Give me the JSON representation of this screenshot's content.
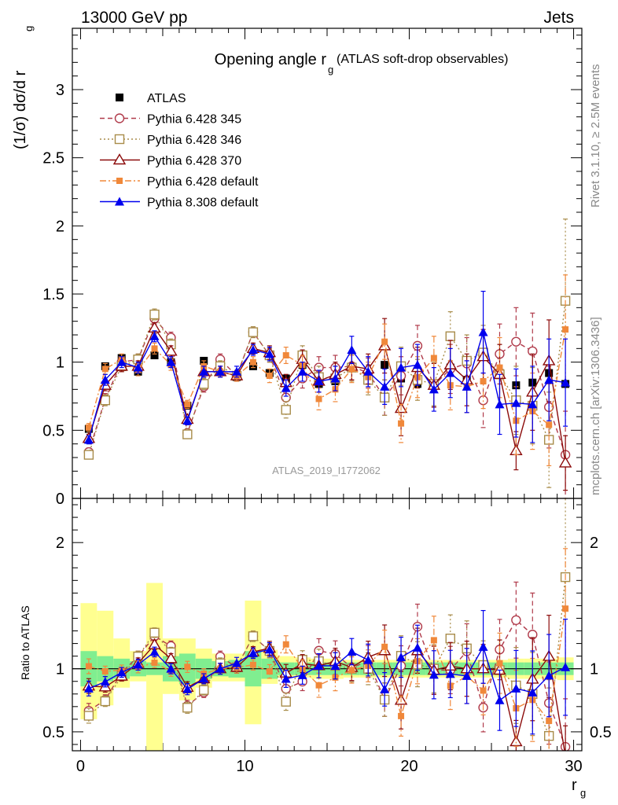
{
  "header": {
    "left": "13000 GeV pp",
    "right": "Jets"
  },
  "title": "Opening angle r",
  "title_sub": "g",
  "title_suffix": "(ATLAS soft-drop observables)",
  "analysis_label": "ATLAS_2019_I1772062",
  "side_rivet": "Rivet 3.1.10, ≥ 2.5M events",
  "side_mcplots": "mcplots.cern.ch [arXiv:1306.3436]",
  "ylabel_main": "(1/σ) dσ/d r",
  "ylabel_main_sub": "g",
  "ylabel_ratio": "Ratio to ATLAS",
  "xlabel": "r",
  "xlabel_sub": "g",
  "colors": {
    "data": "#000000",
    "p345": "#b03a4a",
    "p346": "#a88c4a",
    "p370": "#8b0a0a",
    "pdef": "#f0883a",
    "p8": "#0000ee",
    "band_inner": "#80ee90",
    "band_outer": "#ffff90"
  },
  "chart_data": {
    "type": "line",
    "x": [
      0.5,
      1.5,
      2.5,
      3.5,
      4.5,
      5.5,
      6.5,
      7.5,
      8.5,
      9.5,
      10.5,
      11.5,
      12.5,
      13.5,
      14.5,
      15.5,
      16.5,
      17.5,
      18.5,
      19.5,
      20.5,
      21.5,
      22.5,
      23.5,
      24.5,
      25.5,
      26.5,
      27.5,
      28.5,
      29.5
    ],
    "xlim": [
      -0.5,
      30.5
    ],
    "ylim_main": [
      0,
      3.45
    ],
    "ylim_ratio": [
      0.35,
      2.35
    ],
    "xticks": [
      0,
      10,
      20,
      30
    ],
    "yticks_main": [
      0,
      0.5,
      1,
      1.5,
      2,
      2.5,
      3
    ],
    "yticks_ratio": [
      0.5,
      1,
      2
    ],
    "series": [
      {
        "name": "ATLAS",
        "key": "data",
        "values": [
          0.51,
          0.97,
          1.03,
          0.93,
          1.05,
          1.0,
          0.68,
          1.01,
          0.93,
          0.89,
          0.97,
          0.92,
          0.88,
          0.98,
          0.84,
          0.86,
          0.96,
          0.87,
          0.98,
          0.88,
          0.84,
          0.84,
          0.96,
          0.87,
          1.04,
          0.92,
          0.83,
          0.85,
          0.92,
          0.84
        ]
      },
      {
        "name": "Pythia 6.428 345",
        "key": "p345",
        "values": [
          0.34,
          0.73,
          1.0,
          1.02,
          1.32,
          1.18,
          0.48,
          0.82,
          1.02,
          0.9,
          1.22,
          1.05,
          0.74,
          0.88,
          0.96,
          0.96,
          0.97,
          0.92,
          0.74,
          0.9,
          1.12,
          0.83,
          0.95,
          0.99,
          0.72,
          1.06,
          1.15,
          1.08,
          0.67,
          0.32
        ],
        "err": [
          0.03,
          0.04,
          0.04,
          0.04,
          0.04,
          0.04,
          0.03,
          0.04,
          0.04,
          0.04,
          0.04,
          0.05,
          0.06,
          0.07,
          0.08,
          0.09,
          0.1,
          0.11,
          0.13,
          0.14,
          0.15,
          0.16,
          0.18,
          0.19,
          0.2,
          0.22,
          0.25,
          0.28,
          0.3,
          0.32
        ]
      },
      {
        "name": "Pythia 6.428 346",
        "key": "p346",
        "values": [
          0.32,
          0.72,
          0.97,
          1.02,
          1.35,
          1.13,
          0.47,
          0.84,
          0.97,
          0.9,
          1.22,
          1.05,
          0.65,
          1.05,
          0.89,
          0.88,
          0.96,
          0.87,
          0.74,
          0.97,
          0.87,
          0.84,
          1.19,
          1.01,
          1.07,
          0.91,
          0.72,
          0.68,
          0.43,
          1.45
        ],
        "err": [
          0.03,
          0.04,
          0.04,
          0.04,
          0.04,
          0.04,
          0.03,
          0.04,
          0.04,
          0.04,
          0.04,
          0.05,
          0.06,
          0.07,
          0.08,
          0.09,
          0.1,
          0.11,
          0.13,
          0.14,
          0.15,
          0.16,
          0.18,
          0.19,
          0.2,
          0.22,
          0.25,
          0.28,
          0.35,
          0.6
        ]
      },
      {
        "name": "Pythia 6.428 370",
        "key": "p370",
        "values": [
          0.44,
          0.83,
          0.97,
          0.97,
          1.25,
          1.08,
          0.58,
          0.93,
          0.93,
          0.9,
          1.1,
          1.07,
          0.85,
          1.02,
          0.86,
          0.91,
          0.97,
          0.95,
          1.12,
          0.66,
          0.96,
          0.83,
          0.98,
          0.87,
          1.04,
          0.91,
          0.35,
          0.78,
          1.01,
          0.26
        ],
        "err": [
          0.03,
          0.04,
          0.04,
          0.04,
          0.04,
          0.04,
          0.03,
          0.04,
          0.04,
          0.04,
          0.04,
          0.05,
          0.06,
          0.07,
          0.08,
          0.09,
          0.1,
          0.11,
          0.2,
          0.2,
          0.15,
          0.16,
          0.18,
          0.19,
          0.2,
          0.22,
          0.14,
          0.28,
          0.3,
          0.2
        ]
      },
      {
        "name": "Pythia 6.428 default",
        "key": "pdef",
        "values": [
          0.52,
          0.95,
          1.02,
          0.94,
          1.1,
          0.98,
          0.69,
          0.97,
          0.93,
          0.9,
          1.0,
          0.9,
          1.05,
          0.98,
          0.73,
          0.8,
          0.95,
          0.89,
          1.15,
          0.55,
          0.89,
          1.03,
          0.83,
          0.82,
          0.86,
          0.96,
          0.57,
          0.64,
          0.54,
          1.24
        ],
        "err": [
          0.03,
          0.04,
          0.04,
          0.04,
          0.04,
          0.04,
          0.03,
          0.04,
          0.04,
          0.04,
          0.04,
          0.05,
          0.06,
          0.07,
          0.08,
          0.09,
          0.1,
          0.11,
          0.13,
          0.14,
          0.15,
          0.16,
          0.18,
          0.19,
          0.2,
          0.22,
          0.25,
          0.28,
          0.3,
          0.4
        ]
      },
      {
        "name": "Pythia 8.308 default",
        "key": "p8",
        "values": [
          0.43,
          0.87,
          1.0,
          0.96,
          1.19,
          1.0,
          0.57,
          0.93,
          0.93,
          0.93,
          1.09,
          1.06,
          0.81,
          0.93,
          0.86,
          0.88,
          1.09,
          0.93,
          0.82,
          0.96,
          0.98,
          0.8,
          0.92,
          0.82,
          1.22,
          0.69,
          0.7,
          0.69,
          0.87,
          0.85
        ],
        "err": [
          0.03,
          0.04,
          0.04,
          0.04,
          0.04,
          0.04,
          0.03,
          0.04,
          0.04,
          0.04,
          0.04,
          0.05,
          0.06,
          0.07,
          0.08,
          0.09,
          0.1,
          0.11,
          0.13,
          0.14,
          0.15,
          0.16,
          0.18,
          0.19,
          0.3,
          0.22,
          0.25,
          0.28,
          0.3,
          0.32
        ]
      }
    ],
    "ratio_band": {
      "inner": [
        [
          0.86,
          1.14
        ],
        [
          0.9,
          1.1
        ],
        [
          0.92,
          1.08
        ],
        [
          0.94,
          1.06
        ],
        [
          0.95,
          1.05
        ],
        [
          0.9,
          1.1
        ],
        [
          0.88,
          1.12
        ],
        [
          0.92,
          1.08
        ],
        [
          0.94,
          1.06
        ],
        [
          0.93,
          1.07
        ],
        [
          0.86,
          1.14
        ],
        [
          0.92,
          1.08
        ],
        [
          0.95,
          1.05
        ],
        [
          0.95,
          1.05
        ],
        [
          0.95,
          1.05
        ],
        [
          0.95,
          1.05
        ],
        [
          0.95,
          1.05
        ],
        [
          0.95,
          1.05
        ],
        [
          0.95,
          1.05
        ],
        [
          0.95,
          1.05
        ],
        [
          0.95,
          1.05
        ],
        [
          0.95,
          1.05
        ],
        [
          0.95,
          1.05
        ],
        [
          0.95,
          1.05
        ],
        [
          0.95,
          1.05
        ],
        [
          0.95,
          1.05
        ],
        [
          0.95,
          1.05
        ],
        [
          0.95,
          1.05
        ],
        [
          0.95,
          1.05
        ],
        [
          0.95,
          1.05
        ]
      ],
      "outer": [
        [
          0.6,
          1.52
        ],
        [
          0.71,
          1.46
        ],
        [
          0.85,
          1.24
        ],
        [
          0.9,
          1.14
        ],
        [
          0.34,
          1.68
        ],
        [
          0.8,
          1.24
        ],
        [
          0.75,
          1.24
        ],
        [
          0.85,
          1.16
        ],
        [
          0.9,
          1.12
        ],
        [
          0.9,
          1.12
        ],
        [
          0.56,
          1.54
        ],
        [
          0.88,
          1.15
        ],
        [
          0.93,
          1.1
        ],
        [
          0.93,
          1.09
        ],
        [
          0.92,
          1.08
        ],
        [
          0.92,
          1.08
        ],
        [
          0.93,
          1.07
        ],
        [
          0.93,
          1.07
        ],
        [
          0.93,
          1.07
        ],
        [
          0.93,
          1.07
        ],
        [
          0.93,
          1.07
        ],
        [
          0.93,
          1.07
        ],
        [
          0.93,
          1.07
        ],
        [
          0.93,
          1.07
        ],
        [
          0.93,
          1.07
        ],
        [
          0.93,
          1.07
        ],
        [
          0.92,
          1.08
        ],
        [
          0.92,
          1.08
        ],
        [
          0.92,
          1.08
        ],
        [
          0.91,
          1.09
        ]
      ]
    }
  }
}
